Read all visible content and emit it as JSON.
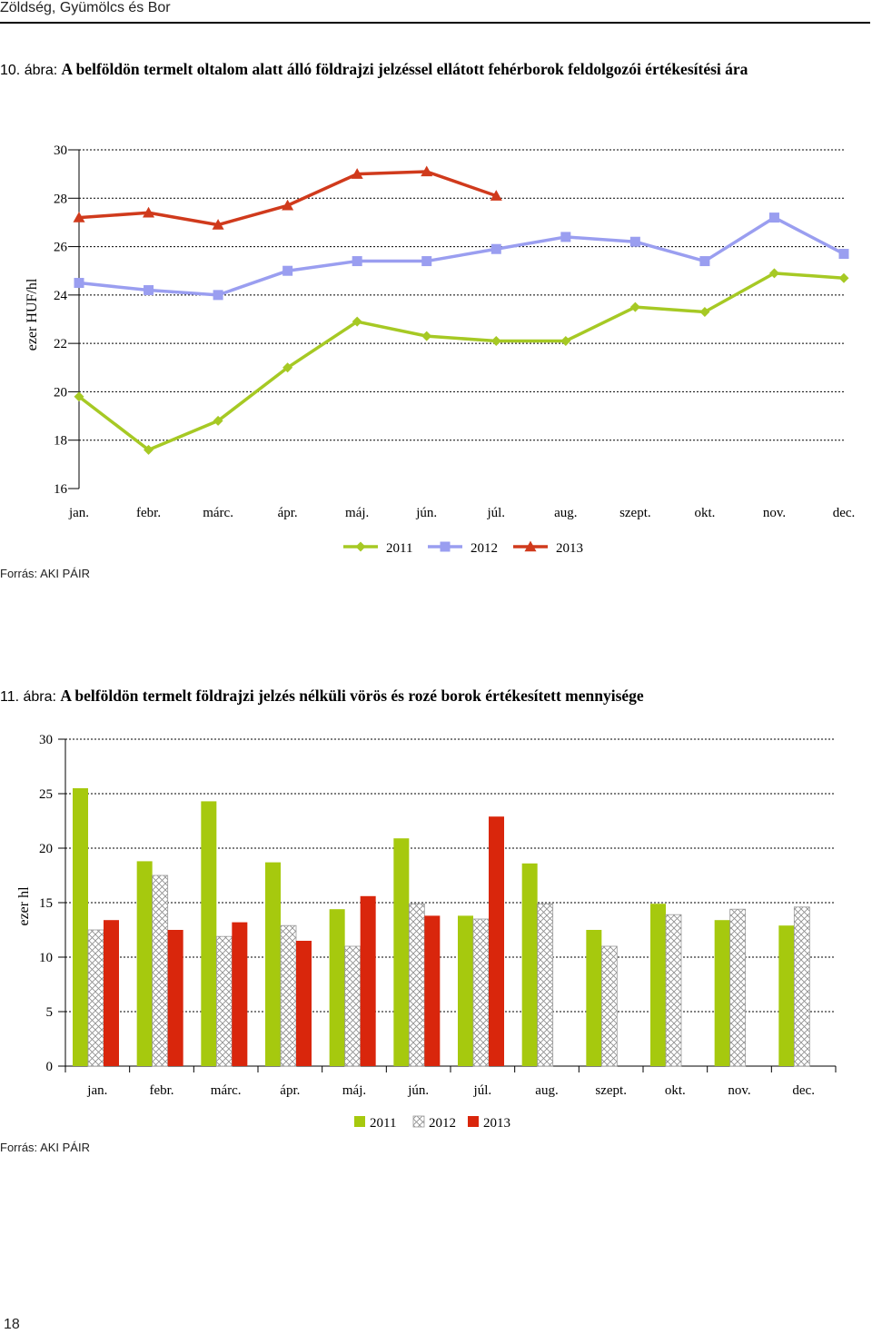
{
  "header": {
    "section_title": "Zöldség, Gyümölcs és Bor"
  },
  "page_number": "18",
  "figure1": {
    "label": "10. ábra:",
    "title": "A belföldön termelt oltalom alatt álló földrajzi jelzéssel ellátott fehérborok feldolgozói értékesítési ára",
    "source": "Forrás: AKI PÁIR"
  },
  "figure2": {
    "label": "11. ábra:",
    "title": "A belföldön termelt földrajzi jelzés nélküli vörös és rozé borok értékesített mennyisége",
    "source": "Forrás: AKI PÁIR"
  },
  "chart_data": [
    {
      "type": "line",
      "categories": [
        "jan.",
        "febr.",
        "márc.",
        "ápr.",
        "máj.",
        "jún.",
        "júl.",
        "aug.",
        "szept.",
        "okt.",
        "nov.",
        "dec."
      ],
      "ylabel": "ezer HUF/hl",
      "ylim": [
        16,
        30
      ],
      "yticks": [
        16,
        18,
        20,
        22,
        24,
        26,
        28,
        30
      ],
      "grid": "dotted-horizontal",
      "legend": "bottom-center",
      "series": [
        {
          "name": "2011",
          "color": "#a6c924",
          "marker": "diamond",
          "values": [
            19.8,
            17.6,
            18.8,
            21.0,
            22.9,
            22.3,
            22.1,
            22.1,
            23.5,
            23.3,
            24.9,
            24.7
          ]
        },
        {
          "name": "2012",
          "color": "#9a9ef0",
          "marker": "square",
          "values": [
            24.5,
            24.2,
            24.0,
            25.0,
            25.4,
            25.4,
            25.9,
            26.4,
            26.2,
            25.4,
            27.2,
            25.7
          ]
        },
        {
          "name": "2013",
          "color": "#d03a1c",
          "marker": "triangle",
          "values": [
            27.2,
            27.4,
            26.9,
            27.7,
            29.0,
            29.1,
            28.1,
            null,
            null,
            null,
            null,
            null
          ]
        }
      ]
    },
    {
      "type": "bar",
      "categories": [
        "jan.",
        "febr.",
        "márc.",
        "ápr.",
        "máj.",
        "jún.",
        "júl.",
        "aug.",
        "szept.",
        "okt.",
        "nov.",
        "dec."
      ],
      "ylabel": "ezer hl",
      "ylim": [
        0,
        30
      ],
      "yticks": [
        0,
        5,
        10,
        15,
        20,
        25,
        30
      ],
      "grid": "dotted-horizontal",
      "legend": "bottom-center",
      "series": [
        {
          "name": "2011",
          "color": "#a6c90e",
          "pattern": "solid",
          "values": [
            25.5,
            18.8,
            24.3,
            18.7,
            14.4,
            20.9,
            13.8,
            18.6,
            12.5,
            14.9,
            13.4,
            12.9
          ]
        },
        {
          "name": "2012",
          "color": "#b0b0b0",
          "pattern": "crosshatch",
          "values": [
            12.5,
            17.5,
            11.9,
            12.9,
            11.0,
            14.9,
            13.5,
            14.9,
            11.0,
            13.9,
            14.4,
            14.6
          ]
        },
        {
          "name": "2013",
          "color": "#d9260c",
          "pattern": "solid",
          "values": [
            13.4,
            12.5,
            13.2,
            11.5,
            15.6,
            13.8,
            22.9,
            null,
            null,
            null,
            null,
            null
          ]
        }
      ]
    }
  ]
}
